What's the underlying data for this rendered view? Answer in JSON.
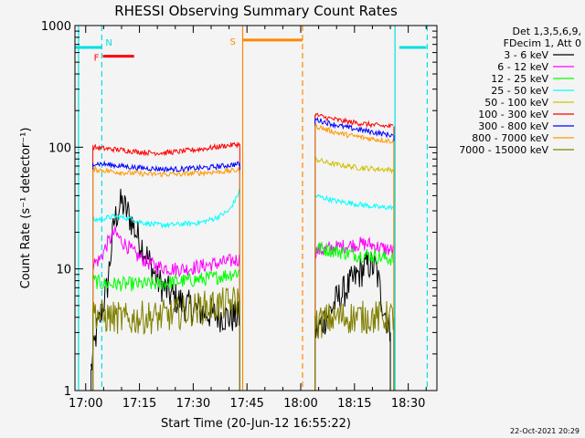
{
  "chart_data": {
    "type": "line",
    "title": "RHESSI Observing Summary Count Rates",
    "xlabel": "Start Time (20-Jun-12 16:55:22)",
    "ylabel": "Count Rate (s⁻¹ detector⁻¹)",
    "y_scale": "log",
    "ylim": [
      1,
      1000
    ],
    "xlim_minutes": [
      -3,
      98
    ],
    "x_ticks": [
      {
        "label": "17:00",
        "value": 0
      },
      {
        "label": "17:15",
        "value": 15
      },
      {
        "label": "17:30",
        "value": 30
      },
      {
        "label": "17:45",
        "value": 45
      },
      {
        "label": "18:00",
        "value": 60
      },
      {
        "label": "18:15",
        "value": 75
      },
      {
        "label": "18:30",
        "value": 90
      }
    ],
    "y_ticks": [
      {
        "label": "1",
        "value": 1
      },
      {
        "label": "10",
        "value": 10
      },
      {
        "label": "100",
        "value": 100
      },
      {
        "label": "1000",
        "value": 1000
      }
    ],
    "legend_header": [
      "Det 1,3,5,6,9,",
      "FDecim 1, Att 0"
    ],
    "series": [
      {
        "name": "3 - 6 keV",
        "color": "#000000",
        "segments": [
          {
            "x": [
              1.5,
              3,
              6,
              8,
              10,
              12,
              14,
              16,
              18,
              20,
              24,
              28,
              32,
              36,
              40,
              43
            ],
            "y": [
              1.5,
              3,
              7,
              25,
              35,
              28,
              20,
              15,
              11,
              8,
              6,
              5,
              4.5,
              4.2,
              4,
              4
            ]
          },
          {
            "x": [
              64,
              67,
              70,
              73,
              76,
              79,
              81,
              83,
              85
            ],
            "y": [
              3,
              4,
              5.5,
              7,
              9,
              11,
              10,
              5,
              3
            ]
          }
        ]
      },
      {
        "name": "6 - 12 keV",
        "color": "#ff00ff",
        "segments": [
          {
            "x": [
              2,
              4,
              6,
              8,
              10,
              12,
              14,
              16,
              18,
              20,
              24,
              28,
              32,
              36,
              40,
              43
            ],
            "y": [
              11,
              12,
              16,
              20,
              17,
              15,
              13,
              12,
              11,
              10.5,
              10,
              10,
              10.5,
              11,
              11.5,
              12
            ]
          },
          {
            "x": [
              64,
              67,
              70,
              73,
              76,
              79,
              82,
              86
            ],
            "y": [
              14,
              14.5,
              15,
              15.5,
              16,
              16,
              15,
              14
            ]
          }
        ]
      },
      {
        "name": "12 - 25 keV",
        "color": "#00ff00",
        "segments": [
          {
            "x": [
              2,
              5,
              8,
              12,
              16,
              20,
              24,
              28,
              32,
              36,
              40,
              43
            ],
            "y": [
              8,
              7.5,
              7.5,
              7.5,
              7.5,
              7.5,
              7.8,
              8,
              8.2,
              8.5,
              9,
              9.5
            ]
          },
          {
            "x": [
              64,
              67,
              70,
              73,
              76,
              79,
              82,
              86
            ],
            "y": [
              15,
              14.5,
              14,
              13.5,
              13,
              13,
              12.5,
              12
            ]
          }
        ]
      },
      {
        "name": "25 - 50 keV",
        "color": "#00ffff",
        "segments": [
          {
            "x": [
              2,
              5,
              8,
              12,
              16,
              20,
              24,
              28,
              32,
              36,
              40,
              42,
              43
            ],
            "y": [
              25,
              26,
              27,
              26,
              24,
              23,
              23,
              23.5,
              24,
              26,
              30,
              38,
              45
            ]
          },
          {
            "x": [
              64,
              67,
              70,
              73,
              76,
              79,
              82,
              86
            ],
            "y": [
              40,
              38,
              36,
              35,
              34,
              33,
              32,
              32
            ]
          }
        ]
      },
      {
        "name": "50 - 100 keV",
        "color": "#d0c000",
        "segments": [
          {
            "x": [
              64,
              67,
              70,
              73,
              76,
              79,
              82,
              86
            ],
            "y": [
              80,
              75,
              72,
              70,
              68,
              67,
              66,
              65
            ]
          }
        ]
      },
      {
        "name": "100 - 300 keV",
        "color": "#ff0000",
        "segments": [
          {
            "x": [
              2,
              6,
              10,
              14,
              18,
              22,
              26,
              30,
              34,
              38,
              43
            ],
            "y": [
              100,
              97,
              95,
              92,
              90,
              90,
              92,
              95,
              98,
              102,
              106
            ]
          },
          {
            "x": [
              64,
              67,
              70,
              73,
              76,
              79,
              82,
              86
            ],
            "y": [
              185,
              175,
              168,
              162,
              158,
              154,
              150,
              148
            ]
          }
        ]
      },
      {
        "name": "300 - 800 keV",
        "color": "#0000ff",
        "segments": [
          {
            "x": [
              2,
              6,
              10,
              14,
              18,
              22,
              26,
              30,
              34,
              38,
              43
            ],
            "y": [
              74,
              72,
              70,
              68,
              67,
              66,
              66,
              67,
              68,
              70,
              73
            ]
          },
          {
            "x": [
              64,
              67,
              70,
              73,
              76,
              79,
              82,
              86
            ],
            "y": [
              170,
              160,
              152,
              145,
              140,
              135,
              130,
              125
            ]
          }
        ]
      },
      {
        "name": "800 - 7000 keV",
        "color": "#ff9900",
        "segments": [
          {
            "x": [
              2,
              6,
              10,
              14,
              18,
              22,
              26,
              30,
              34,
              38,
              43
            ],
            "y": [
              66,
              64,
              62,
              61,
              60,
              60,
              60,
              61,
              62,
              63,
              65
            ]
          },
          {
            "x": [
              64,
              67,
              70,
              73,
              76,
              79,
              82,
              86
            ],
            "y": [
              150,
              140,
              132,
              126,
              122,
              118,
              115,
              112
            ]
          }
        ]
      },
      {
        "name": "7000 - 15000 keV",
        "color": "#808000",
        "segments": [
          {
            "x": [
              2,
              5,
              8,
              12,
              16,
              20,
              24,
              28,
              32,
              36,
              40,
              43
            ],
            "y": [
              4.5,
              4,
              4,
              3.8,
              4,
              4,
              4.2,
              4.5,
              4.8,
              5,
              5.2,
              5.5
            ]
          },
          {
            "x": [
              64,
              67,
              70,
              73,
              76,
              79,
              82,
              86
            ],
            "y": [
              3.5,
              3.8,
              4,
              4,
              4,
              4,
              4,
              4
            ]
          }
        ]
      }
    ],
    "flag_bars": [
      {
        "label": "N",
        "color": "#00e0e0",
        "x_start": -3,
        "x_end": 4.5,
        "y_value": 660,
        "marker_x": 4.5
      },
      {
        "label": "F",
        "color": "#ff0000",
        "x_start": 4.8,
        "x_end": 13.5,
        "y_value": 560,
        "marker_x": 4.8
      },
      {
        "label": "S",
        "color": "#ff8800",
        "x_start": 43.8,
        "x_end": 60.5,
        "y_value": 760,
        "marker_x": 43.8
      },
      {
        "label": "",
        "color": "#00e0e0",
        "x_start": 87.5,
        "x_end": 95,
        "y_value": 660,
        "marker_x": 87.5
      }
    ],
    "vertical_markers": [
      {
        "color": "#00e0e0",
        "x": -2,
        "style": "solid"
      },
      {
        "color": "#00e0e0",
        "x": 4.5,
        "style": "dashed"
      },
      {
        "color": "#ff8800",
        "x": 43.8,
        "style": "solid"
      },
      {
        "color": "#ff8800",
        "x": 60.5,
        "style": "dashed"
      },
      {
        "color": "#00e0e0",
        "x": 86.3,
        "style": "solid"
      },
      {
        "color": "#00e0e0",
        "x": 95.3,
        "style": "dashed"
      }
    ]
  },
  "footer": {
    "timestamp": "22-Oct-2021 20:29"
  }
}
